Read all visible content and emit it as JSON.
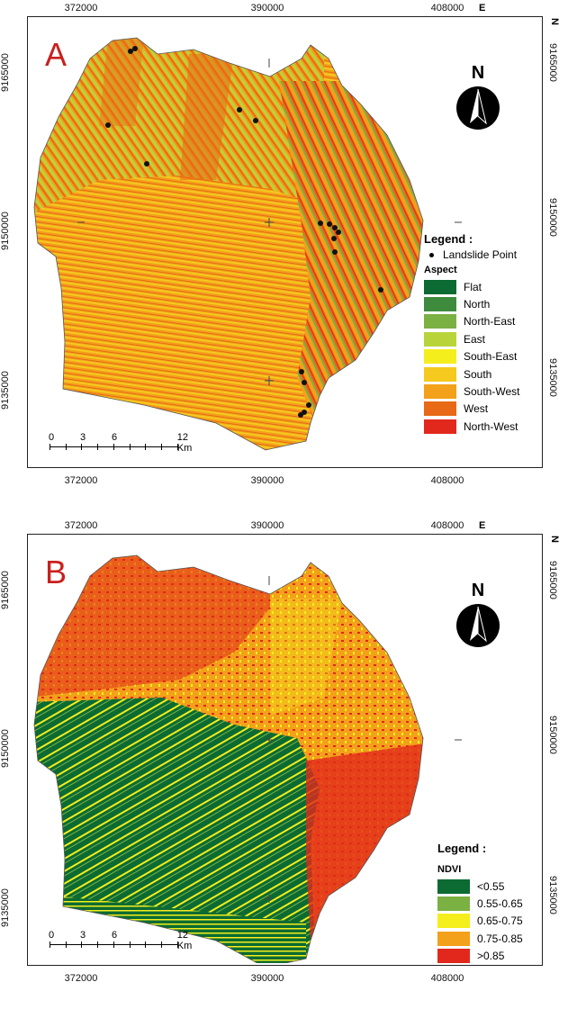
{
  "panels": [
    {
      "letter": "A",
      "x_ticks": [
        "372000",
        "390000",
        "408000"
      ],
      "y_ticks": [
        "9165000",
        "9150000",
        "9135000"
      ],
      "east_label": "E",
      "north_side_label": "N",
      "north_arrow": "N",
      "scale": {
        "labels": [
          "0",
          "3",
          "6",
          "12 Km"
        ]
      },
      "legend": {
        "title": "Legend :",
        "point_label": "Landslide Point",
        "subtitle": "Aspect",
        "items": [
          {
            "label": "Flat",
            "color": "#0b6b32"
          },
          {
            "label": "North",
            "color": "#3f8b3d"
          },
          {
            "label": "North-East",
            "color": "#7bb043"
          },
          {
            "label": "East",
            "color": "#b9d43a"
          },
          {
            "label": "South-East",
            "color": "#f4ee1d"
          },
          {
            "label": "South",
            "color": "#f5c91d"
          },
          {
            "label": "South-West",
            "color": "#f3a01b"
          },
          {
            "label": "West",
            "color": "#e86a16"
          },
          {
            "label": "North-West",
            "color": "#e2281c"
          }
        ]
      }
    },
    {
      "letter": "B",
      "x_ticks": [
        "372000",
        "390000",
        "408000"
      ],
      "y_ticks": [
        "9165000",
        "9150000",
        "9135000"
      ],
      "east_label": "E",
      "north_side_label": "N",
      "north_arrow": "N",
      "scale": {
        "labels": [
          "0",
          "3",
          "6",
          "12 Km"
        ]
      },
      "legend": {
        "title": "Legend :",
        "subtitle": "NDVI",
        "items": [
          {
            "label": "<0.55",
            "color": "#0b6b32"
          },
          {
            "label": "0.55-0.65",
            "color": "#7bb043"
          },
          {
            "label": "0.65-0.75",
            "color": "#f4ee1d"
          },
          {
            "label": "0.75-0.85",
            "color": "#f3a01b"
          },
          {
            "label": ">0.85",
            "color": "#e2281c"
          }
        ]
      }
    }
  ]
}
